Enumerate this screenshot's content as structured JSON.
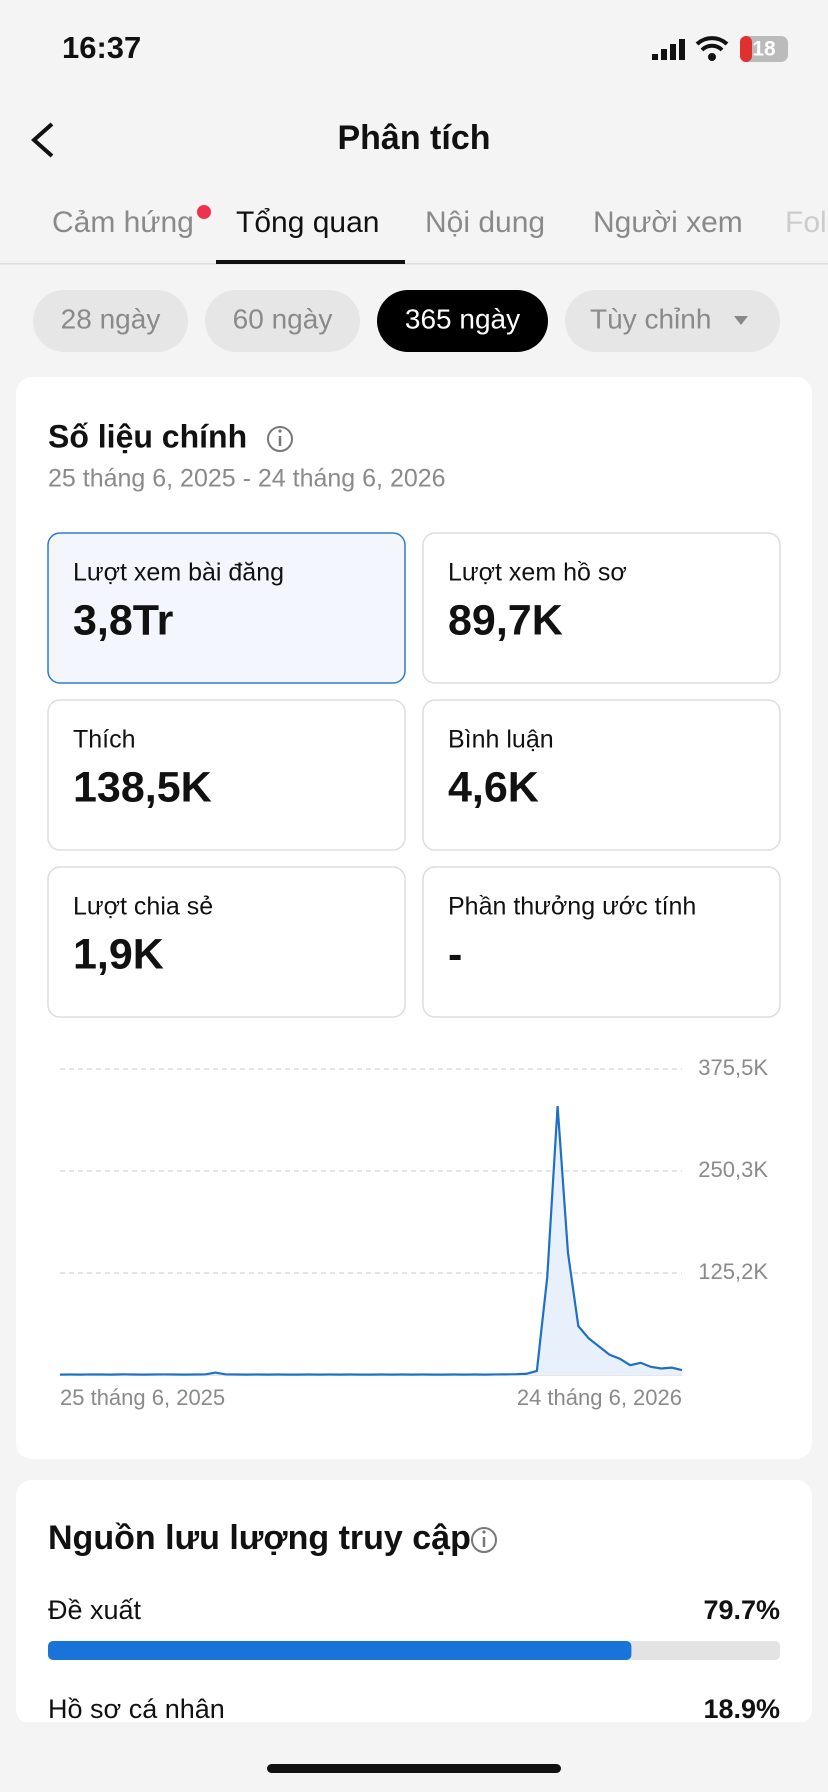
{
  "status_bar": {
    "time": "16:37",
    "battery": "18"
  },
  "header": {
    "title": "Phân tích"
  },
  "tabs": [
    "Cảm hứng",
    "Tổng quan",
    "Nội dung",
    "Người xem",
    "Fol"
  ],
  "periods": [
    "28 ngày",
    "60 ngày",
    "365 ngày",
    "Tùy chỉnh"
  ],
  "key_metrics": {
    "title": "Số liệu chính",
    "date_range": "25 tháng 6, 2025 - 24 tháng 6, 2026",
    "cards": [
      {
        "label": "Lượt xem bài đăng",
        "value": "3,8Tr"
      },
      {
        "label": "Lượt xem hồ sơ",
        "value": "89,7K"
      },
      {
        "label": "Thích",
        "value": "138,5K"
      },
      {
        "label": "Bình luận",
        "value": "4,6K"
      },
      {
        "label": "Lượt chia sẻ",
        "value": "1,9K"
      },
      {
        "label": "Phần thưởng ước tính",
        "value": "-"
      }
    ]
  },
  "chart_data": {
    "type": "line",
    "color": "#1f6fc5",
    "grid": true,
    "categories": [
      "25 tháng 6, 2025",
      null,
      null,
      null,
      null,
      null,
      null,
      null,
      null,
      null,
      null,
      null,
      null,
      null,
      null,
      null,
      null,
      null,
      null,
      null,
      null,
      null,
      null,
      null,
      null,
      null,
      null,
      null,
      null,
      null,
      null,
      null,
      null,
      null,
      null,
      null,
      null,
      null,
      null,
      null,
      null,
      null,
      null,
      null,
      null,
      null,
      null,
      null,
      null,
      null,
      null,
      null,
      null,
      null,
      null,
      null,
      null,
      null,
      null,
      null,
      "24 tháng 6, 2026"
    ],
    "series": [
      {
        "name": "Lượt xem bài đăng",
        "color": "#1f6fc5",
        "values": [
          500,
          600,
          500,
          700,
          600,
          500,
          800,
          600,
          500,
          600,
          700,
          600,
          500,
          600,
          700,
          3000,
          700,
          600,
          500,
          600,
          500,
          600,
          500,
          500,
          600,
          500,
          600,
          500,
          600,
          500,
          500,
          600,
          500,
          600,
          500,
          600,
          500,
          500,
          600,
          500,
          600,
          500,
          700,
          800,
          1000,
          1500,
          5000,
          120000,
          330000,
          150000,
          60000,
          45000,
          35000,
          25000,
          20000,
          12000,
          15000,
          10000,
          8000,
          9000,
          6000
        ]
      }
    ],
    "ylim": [
      0,
      375500
    ],
    "yticks": [
      0,
      {
        "value": 125200,
        "label": "125,2K"
      },
      {
        "value": 250300,
        "label": "250,3K"
      },
      {
        "value": 375500,
        "label": "375,5K"
      }
    ]
  },
  "traffic": {
    "title": "Nguồn lưu lượng truy cập",
    "sources": [
      {
        "name": "Đề xuất",
        "value": 79.7,
        "value_label": "79.7%"
      },
      {
        "name": "Hồ sơ cá nhân",
        "value": 18.9,
        "value_label": "18.9%"
      }
    ]
  }
}
